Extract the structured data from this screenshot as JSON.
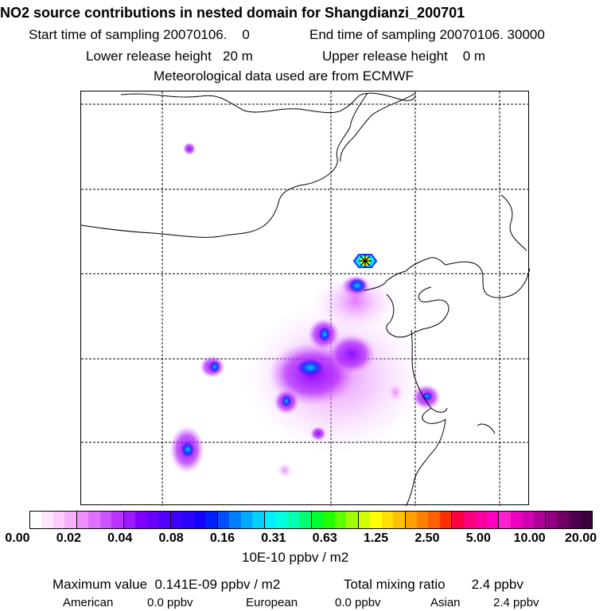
{
  "header": {
    "title": "NO2 source contributions in nested domain for Shangdianzi_200701",
    "sampling_start": "Start time of sampling 20070106.    0",
    "sampling_end": "End time of sampling 20070106. 30000",
    "lower_release": "Lower release height   20 m",
    "upper_release": "Upper release height    0 m",
    "met_data": "Meteorological data used are from ECMWF"
  },
  "colorbar": {
    "unit_label": "10E-10 ppbv / m2",
    "tick_labels": [
      "0.00",
      "0.02",
      "0.04",
      "0.08",
      "0.16",
      "0.31",
      "0.63",
      "1.25",
      "2.50",
      "5.00",
      "10.00",
      "20.00"
    ],
    "colors": [
      "#ffffff",
      "#ffe6ff",
      "#ffccff",
      "#f8b0ff",
      "#f090ff",
      "#e070ff",
      "#cc55ff",
      "#b833ff",
      "#9c1aff",
      "#8000ff",
      "#6a00ff",
      "#5500ff",
      "#3c00ff",
      "#2a00ff",
      "#1400ff",
      "#0020ff",
      "#0050ff",
      "#0080ff",
      "#00a8ff",
      "#00d0ff",
      "#00f0ff",
      "#00ffe0",
      "#00ffb0",
      "#00ff70",
      "#00ff30",
      "#20ff00",
      "#60ff00",
      "#a0ff00",
      "#d0ff00",
      "#ffff00",
      "#ffe000",
      "#ffc000",
      "#ffa000",
      "#ff8000",
      "#ff6000",
      "#ff3000",
      "#ff0040",
      "#ff0080",
      "#ff00a0",
      "#ff00c0",
      "#ff20d0",
      "#f000c0",
      "#d000b0",
      "#b00098",
      "#900080",
      "#700066",
      "#500050",
      "#3a003a"
    ]
  },
  "footer": {
    "max_value": "Maximum value  0.141E-09 ppbv / m2",
    "total_mixing": "Total mixing ratio       2.4 ppbv",
    "american_label": "American",
    "american_value": "0.0 ppbv",
    "european_label": "European",
    "european_value": "0.0 ppbv",
    "asian_label": "Asian",
    "asian_value": "2.4 ppbv"
  }
}
